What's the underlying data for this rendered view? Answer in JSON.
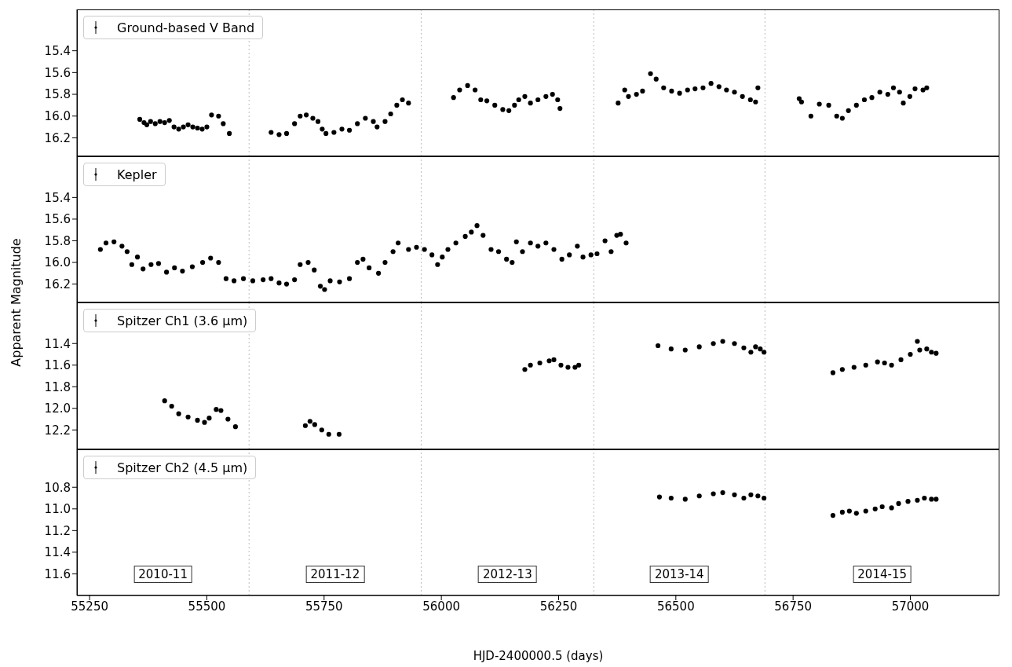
{
  "chart_data": [
    {
      "type": "scatter",
      "xlim": [
        55223,
        57190
      ],
      "xticks": [
        55250,
        55500,
        55750,
        56000,
        56250,
        56500,
        56750,
        57000
      ],
      "ylim": [
        16.37,
        15.02
      ],
      "yticks": [
        15.4,
        15.6,
        15.8,
        {
          "value": 16,
          "label": "16.0"
        },
        16.2
      ],
      "tick_labels": "y",
      "legend": "top left",
      "marker": "circle",
      "ref_lines": [
        {
          "axis": "x",
          "value": 55590,
          "color": "#bbbbbb",
          "line_style": "dotted"
        },
        {
          "axis": "x",
          "value": 55957,
          "color": "#bbbbbb",
          "line_style": "dotted"
        },
        {
          "axis": "x",
          "value": 56325,
          "color": "#bbbbbb",
          "line_style": "dotted"
        },
        {
          "axis": "x",
          "value": 56690,
          "color": "#bbbbbb",
          "line_style": "dotted"
        }
      ],
      "series": [
        {
          "name": "Ground-based V Band",
          "color": "#000000",
          "x": [
            55357,
            55366,
            55372,
            55380,
            55390,
            55400,
            55410,
            55420,
            55430,
            55440,
            55450,
            55460,
            55470,
            55480,
            55490,
            55500,
            55510,
            55525,
            55535,
            55548,
            55637,
            55654,
            55670,
            55687,
            55699,
            55712,
            55726,
            55737,
            55746,
            55754,
            55771,
            55788,
            55804,
            55821,
            55838,
            55855,
            55863,
            55880,
            55892,
            55905,
            55917,
            55930,
            56026,
            56039,
            56056,
            56072,
            56084,
            56097,
            56114,
            56131,
            56144,
            56156,
            56165,
            56178,
            56190,
            56206,
            56223,
            56237,
            56248,
            56253,
            56377,
            56391,
            56399,
            56416,
            56429,
            56446,
            56458,
            56474,
            56491,
            56508,
            56525,
            56541,
            56558,
            56575,
            56592,
            56608,
            56625,
            56642,
            56659,
            56670,
            56675,
            56763,
            56768,
            56788,
            56806,
            56826,
            56843,
            56855,
            56868,
            56885,
            56902,
            56918,
            56935,
            56952,
            56964,
            56977,
            56985,
            56999,
            57010,
            57027,
            57035
          ],
          "values": [
            16.03,
            16.06,
            16.08,
            16.05,
            16.07,
            16.05,
            16.06,
            16.04,
            16.1,
            16.12,
            16.1,
            16.08,
            16.1,
            16.11,
            16.12,
            16.1,
            15.99,
            16.0,
            16.07,
            16.16,
            16.15,
            16.17,
            16.16,
            16.07,
            16.0,
            15.99,
            16.02,
            16.05,
            16.12,
            16.16,
            16.15,
            16.12,
            16.13,
            16.07,
            16.02,
            16.05,
            16.1,
            16.05,
            15.98,
            15.9,
            15.85,
            15.88,
            15.83,
            15.76,
            15.72,
            15.76,
            15.85,
            15.86,
            15.9,
            15.94,
            15.95,
            15.9,
            15.85,
            15.82,
            15.88,
            15.85,
            15.82,
            15.8,
            15.85,
            15.93,
            15.88,
            15.76,
            15.82,
            15.8,
            15.77,
            15.61,
            15.66,
            15.74,
            15.77,
            15.79,
            15.76,
            15.75,
            15.74,
            15.7,
            15.73,
            15.76,
            15.78,
            15.82,
            15.85,
            15.87,
            15.74,
            15.84,
            15.87,
            16.0,
            15.89,
            15.9,
            16.0,
            16.02,
            15.95,
            15.9,
            15.85,
            15.83,
            15.78,
            15.8,
            15.74,
            15.78,
            15.88,
            15.82,
            15.75,
            15.76,
            15.74
          ]
        }
      ]
    },
    {
      "type": "scatter",
      "xlim": [
        55223,
        57190
      ],
      "xticks": [
        55250,
        55500,
        55750,
        56000,
        56250,
        56500,
        56750,
        57000
      ],
      "ylim": [
        16.37,
        15.02
      ],
      "yticks": [
        15.4,
        15.6,
        15.8,
        {
          "value": 16,
          "label": "16.0"
        },
        16.2
      ],
      "tick_labels": "y",
      "legend": "top left",
      "marker": "circle",
      "ylabel": "Apparent Magnitude",
      "ref_lines": [
        {
          "axis": "x",
          "value": 55590,
          "color": "#bbbbbb",
          "line_style": "dotted"
        },
        {
          "axis": "x",
          "value": 55957,
          "color": "#bbbbbb",
          "line_style": "dotted"
        },
        {
          "axis": "x",
          "value": 56325,
          "color": "#bbbbbb",
          "line_style": "dotted"
        },
        {
          "axis": "x",
          "value": 56690,
          "color": "#bbbbbb",
          "line_style": "dotted"
        }
      ],
      "series": [
        {
          "name": "Kepler",
          "color": "#000000",
          "x": [
            55273,
            55285,
            55302,
            55319,
            55330,
            55340,
            55352,
            55364,
            55381,
            55397,
            55414,
            55431,
            55448,
            55469,
            55491,
            55508,
            55525,
            55541,
            55558,
            55578,
            55598,
            55620,
            55637,
            55654,
            55670,
            55687,
            55699,
            55716,
            55729,
            55742,
            55751,
            55763,
            55783,
            55804,
            55821,
            55833,
            55846,
            55866,
            55880,
            55897,
            55908,
            55930,
            55947,
            55964,
            55980,
            55992,
            56002,
            56014,
            56031,
            56051,
            56064,
            56076,
            56089,
            56106,
            56122,
            56139,
            56151,
            56160,
            56173,
            56190,
            56206,
            56223,
            56240,
            56257,
            56273,
            56290,
            56302,
            56319,
            56332,
            56349,
            56362,
            56374,
            56382,
            56394
          ],
          "values": [
            15.88,
            15.82,
            15.81,
            15.85,
            15.9,
            16.02,
            15.95,
            16.06,
            16.02,
            16.01,
            16.09,
            16.05,
            16.08,
            16.04,
            16.0,
            15.96,
            16.0,
            16.15,
            16.17,
            16.15,
            16.17,
            16.16,
            16.15,
            16.19,
            16.2,
            16.16,
            16.02,
            16.0,
            16.07,
            16.22,
            16.25,
            16.17,
            16.18,
            16.15,
            16.0,
            15.97,
            16.05,
            16.1,
            16.0,
            15.9,
            15.82,
            15.88,
            15.86,
            15.88,
            15.93,
            16.02,
            15.95,
            15.88,
            15.82,
            15.76,
            15.72,
            15.66,
            15.75,
            15.88,
            15.9,
            15.97,
            16.0,
            15.81,
            15.9,
            15.82,
            15.85,
            15.82,
            15.88,
            15.97,
            15.93,
            15.85,
            15.95,
            15.93,
            15.92,
            15.8,
            15.9,
            15.75,
            15.74,
            15.82
          ]
        }
      ]
    },
    {
      "type": "scatter",
      "xlim": [
        55223,
        57190
      ],
      "xticks": [
        55250,
        55500,
        55750,
        56000,
        56250,
        56500,
        56750,
        57000
      ],
      "ylim": [
        12.38,
        11.02
      ],
      "yticks": [
        11.4,
        11.6,
        11.8,
        {
          "value": 12,
          "label": "12.0"
        },
        12.2
      ],
      "tick_labels": "y",
      "legend": "top left",
      "marker": "circle",
      "ref_lines": [
        {
          "axis": "x",
          "value": 55590,
          "color": "#bbbbbb",
          "line_style": "dotted"
        },
        {
          "axis": "x",
          "value": 55957,
          "color": "#bbbbbb",
          "line_style": "dotted"
        },
        {
          "axis": "x",
          "value": 56325,
          "color": "#bbbbbb",
          "line_style": "dotted"
        },
        {
          "axis": "x",
          "value": 56690,
          "color": "#bbbbbb",
          "line_style": "dotted"
        }
      ],
      "series": [
        {
          "name": "Spitzer Ch1 (3.6 μm)",
          "color": "#000000",
          "x": [
            55410,
            55425,
            55440,
            55460,
            55480,
            55495,
            55505,
            55520,
            55530,
            55545,
            55561,
            55710,
            55720,
            55730,
            55745,
            55760,
            55782,
            56178,
            56190,
            56210,
            56230,
            56240,
            56255,
            56270,
            56285,
            56293,
            56462,
            56490,
            56520,
            56550,
            56580,
            56600,
            56625,
            56645,
            56660,
            56670,
            56680,
            56688,
            56835,
            56855,
            56880,
            56905,
            56930,
            56945,
            56960,
            56980,
            57000,
            57015,
            57020,
            57035,
            57045,
            57055
          ],
          "values": [
            11.93,
            11.98,
            12.05,
            12.08,
            12.11,
            12.13,
            12.09,
            12.01,
            12.02,
            12.1,
            12.17,
            12.16,
            12.12,
            12.15,
            12.2,
            12.24,
            12.24,
            11.64,
            11.6,
            11.58,
            11.56,
            11.55,
            11.6,
            11.62,
            11.62,
            11.6,
            11.42,
            11.45,
            11.46,
            11.43,
            11.4,
            11.38,
            11.4,
            11.44,
            11.48,
            11.43,
            11.45,
            11.48,
            11.67,
            11.64,
            11.62,
            11.6,
            11.57,
            11.58,
            11.6,
            11.55,
            11.5,
            11.38,
            11.46,
            11.45,
            11.48,
            11.49
          ]
        }
      ]
    },
    {
      "type": "scatter",
      "xlim": [
        55223,
        57190
      ],
      "xticks": [
        55250,
        55500,
        55750,
        56000,
        56250,
        56500,
        56750,
        57000
      ],
      "ylim": [
        11.8,
        10.45
      ],
      "yticks": [
        10.8,
        {
          "value": 11,
          "label": "11.0"
        },
        11.2,
        11.4,
        11.6
      ],
      "legend": "top left",
      "marker": "circle",
      "xlabel": "HJD-2400000.5 (days)",
      "ref_lines": [
        {
          "axis": "x",
          "value": 55590,
          "color": "#bbbbbb",
          "line_style": "dotted"
        },
        {
          "axis": "x",
          "value": 55957,
          "color": "#bbbbbb",
          "line_style": "dotted"
        },
        {
          "axis": "x",
          "value": 56325,
          "color": "#bbbbbb",
          "line_style": "dotted"
        },
        {
          "axis": "x",
          "value": 56690,
          "color": "#bbbbbb",
          "line_style": "dotted"
        }
      ],
      "annotations": [
        "2010-11",
        "2011-12",
        "2012-13",
        "2013-14",
        "2014-15"
      ],
      "series": [
        {
          "name": "Spitzer Ch2 (4.5 μm)",
          "color": "#000000",
          "x": [
            56465,
            56490,
            56520,
            56550,
            56580,
            56600,
            56625,
            56645,
            56660,
            56675,
            56688,
            56835,
            56855,
            56870,
            56885,
            56905,
            56925,
            56940,
            56960,
            56975,
            56995,
            57015,
            57030,
            57045,
            57055
          ],
          "values": [
            10.89,
            10.9,
            10.91,
            10.88,
            10.86,
            10.85,
            10.87,
            10.9,
            10.87,
            10.88,
            10.9,
            11.06,
            11.03,
            11.02,
            11.04,
            11.02,
            11.0,
            10.98,
            10.99,
            10.95,
            10.93,
            10.92,
            10.9,
            10.91,
            10.91
          ]
        }
      ]
    }
  ]
}
